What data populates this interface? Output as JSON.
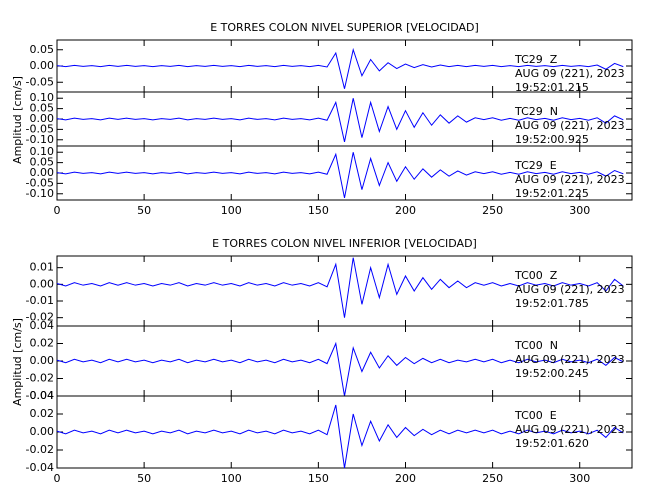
{
  "chart_data": [
    {
      "type": "line",
      "title": "E TORRES COLON NIVEL SUPERIOR [VELOCIDAD]",
      "y_label": "Amplitud [cm/s]",
      "color": "#0000ff",
      "xlim": [
        0,
        330
      ],
      "xticks": [
        0,
        50,
        100,
        150,
        200,
        250,
        300
      ],
      "x": [
        0,
        5,
        10,
        15,
        20,
        25,
        30,
        35,
        40,
        45,
        50,
        55,
        60,
        65,
        70,
        75,
        80,
        85,
        90,
        95,
        100,
        105,
        110,
        115,
        120,
        125,
        130,
        135,
        140,
        145,
        150,
        155,
        160,
        165,
        170,
        175,
        180,
        185,
        190,
        195,
        200,
        205,
        210,
        215,
        220,
        225,
        230,
        235,
        240,
        245,
        250,
        255,
        260,
        265,
        270,
        275,
        280,
        285,
        290,
        295,
        300,
        305,
        310,
        315,
        320,
        325
      ],
      "panels": [
        {
          "station": "TC29  Z",
          "date": "AUG 09 (221), 2023",
          "time": "19:52:01.215",
          "ylim": [
            -0.08,
            0.08
          ],
          "yticks": [
            {
              "value": 0.05,
              "label": "0.05"
            },
            {
              "value": 0,
              "label": "0.00"
            },
            {
              "value": -0.05,
              "label": "-0.05"
            }
          ],
          "values": [
            0.001,
            -0.002,
            0.002,
            -0.001,
            0.001,
            -0.002,
            0.002,
            -0.001,
            0.002,
            -0.001,
            0.001,
            -0.002,
            0.001,
            -0.001,
            0.002,
            -0.002,
            0.001,
            -0.001,
            0.002,
            -0.001,
            0.001,
            -0.002,
            0.002,
            -0.001,
            0.001,
            -0.002,
            0.002,
            -0.001,
            0.001,
            -0.002,
            0.002,
            -0.003,
            0.04,
            -0.07,
            0.05,
            -0.03,
            0.02,
            -0.015,
            0.01,
            -0.008,
            0.006,
            -0.005,
            0.004,
            -0.003,
            0.003,
            -0.002,
            0.002,
            -0.002,
            0.002,
            -0.001,
            0.002,
            -0.002,
            0.001,
            -0.002,
            0.002,
            -0.001,
            0.001,
            -0.002,
            0.002,
            -0.001,
            0.001,
            -0.002,
            0.003,
            -0.01,
            0.008,
            -0.002
          ]
        },
        {
          "station": "TC29  N",
          "date": "AUG 09 (221), 2023",
          "time": "19:52:00.925",
          "ylim": [
            -0.13,
            0.13
          ],
          "yticks": [
            {
              "value": 0.1,
              "label": "0.10"
            },
            {
              "value": 0.05,
              "label": "0.05"
            },
            {
              "value": 0,
              "label": "0.00"
            },
            {
              "value": -0.05,
              "label": "-0.05"
            },
            {
              "value": -0.1,
              "label": "-0.10"
            }
          ],
          "values": [
            0.002,
            -0.004,
            0.004,
            -0.002,
            0.002,
            -0.004,
            0.004,
            -0.002,
            0.004,
            -0.002,
            0.002,
            -0.004,
            0.002,
            -0.002,
            0.004,
            -0.004,
            0.002,
            -0.002,
            0.004,
            -0.002,
            0.002,
            -0.004,
            0.004,
            -0.002,
            0.002,
            -0.004,
            0.004,
            -0.002,
            0.002,
            -0.004,
            0.004,
            -0.006,
            0.08,
            -0.11,
            0.1,
            -0.09,
            0.08,
            -0.06,
            0.06,
            -0.05,
            0.04,
            -0.04,
            0.03,
            -0.03,
            0.02,
            -0.02,
            0.015,
            -0.015,
            0.006,
            -0.003,
            0.006,
            -0.006,
            0.003,
            -0.006,
            0.006,
            -0.003,
            0.003,
            -0.006,
            0.006,
            -0.003,
            0.003,
            -0.006,
            0.006,
            -0.02,
            0.015,
            -0.004
          ]
        },
        {
          "station": "TC29  E",
          "date": "AUG 09 (221), 2023",
          "time": "19:52:01.225",
          "ylim": [
            -0.13,
            0.13
          ],
          "yticks": [
            {
              "value": 0.1,
              "label": "0.10"
            },
            {
              "value": 0.05,
              "label": "0.05"
            },
            {
              "value": 0,
              "label": "0.00"
            },
            {
              "value": -0.05,
              "label": "-0.05"
            },
            {
              "value": -0.1,
              "label": "-0.10"
            }
          ],
          "values": [
            0.002,
            -0.004,
            0.004,
            -0.002,
            0.002,
            -0.004,
            0.004,
            -0.002,
            0.004,
            -0.002,
            0.002,
            -0.004,
            0.002,
            -0.002,
            0.004,
            -0.004,
            0.002,
            -0.002,
            0.004,
            -0.002,
            0.002,
            -0.004,
            0.004,
            -0.002,
            0.002,
            -0.004,
            0.004,
            -0.002,
            0.002,
            -0.004,
            0.004,
            -0.006,
            0.09,
            -0.12,
            0.1,
            -0.08,
            0.07,
            -0.06,
            0.05,
            -0.04,
            0.03,
            -0.03,
            0.02,
            -0.02,
            0.015,
            -0.015,
            0.01,
            -0.01,
            0.006,
            -0.003,
            0.006,
            -0.006,
            0.003,
            -0.006,
            0.006,
            -0.003,
            0.003,
            -0.006,
            0.006,
            -0.003,
            0.003,
            -0.006,
            0.006,
            -0.015,
            0.012,
            -0.004
          ]
        }
      ]
    },
    {
      "type": "line",
      "title": "E TORRES COLON NIVEL INFERIOR [VELOCIDAD]",
      "y_label": "Amplitud [cm/s]",
      "color": "#0000ff",
      "xlim": [
        0,
        330
      ],
      "xticks": [
        0,
        50,
        100,
        150,
        200,
        250,
        300
      ],
      "x": [
        0,
        5,
        10,
        15,
        20,
        25,
        30,
        35,
        40,
        45,
        50,
        55,
        60,
        65,
        70,
        75,
        80,
        85,
        90,
        95,
        100,
        105,
        110,
        115,
        120,
        125,
        130,
        135,
        140,
        145,
        150,
        155,
        160,
        165,
        170,
        175,
        180,
        185,
        190,
        195,
        200,
        205,
        210,
        215,
        220,
        225,
        230,
        235,
        240,
        245,
        250,
        255,
        260,
        265,
        270,
        275,
        280,
        285,
        290,
        295,
        300,
        305,
        310,
        315,
        320,
        325
      ],
      "panels": [
        {
          "station": "TC00  Z",
          "date": "AUG 09 (221), 2023",
          "time": "19:52:01.785",
          "ylim": [
            -0.025,
            0.017
          ],
          "yticks": [
            {
              "value": 0.01,
              "label": "0.01"
            },
            {
              "value": 0,
              "label": "0.00"
            },
            {
              "value": -0.01,
              "label": "-0.01"
            },
            {
              "value": -0.02,
              "label": "-0.02"
            }
          ],
          "values": [
            0.0005,
            -0.001,
            0.001,
            -0.0005,
            0.0005,
            -0.001,
            0.001,
            -0.0005,
            0.001,
            -0.0005,
            0.0005,
            -0.001,
            0.0005,
            -0.0005,
            0.001,
            -0.001,
            0.0005,
            -0.0005,
            0.001,
            -0.0005,
            0.0005,
            -0.001,
            0.001,
            -0.0005,
            0.0005,
            -0.001,
            0.001,
            -0.0005,
            0.0005,
            -0.001,
            0.001,
            -0.0015,
            0.012,
            -0.02,
            0.016,
            -0.012,
            0.01,
            -0.008,
            0.012,
            -0.006,
            0.005,
            -0.004,
            0.004,
            -0.003,
            0.003,
            -0.002,
            0.002,
            -0.002,
            0.001,
            -0.0005,
            0.001,
            -0.001,
            0.0005,
            -0.001,
            0.001,
            -0.0005,
            0.0005,
            -0.001,
            0.001,
            -0.0005,
            0.0005,
            -0.001,
            0.001,
            -0.004,
            0.003,
            -0.001
          ]
        },
        {
          "station": "TC00  N",
          "date": "AUG 09 (221), 2023",
          "time": "19:52:00.245",
          "ylim": [
            -0.04,
            0.04
          ],
          "yticks": [
            {
              "value": 0.04,
              "label": "0.04"
            },
            {
              "value": 0.02,
              "label": "0.02"
            },
            {
              "value": 0,
              "label": "0.00"
            },
            {
              "value": -0.02,
              "label": "-0.02"
            },
            {
              "value": -0.04,
              "label": "-0.04"
            }
          ],
          "values": [
            0.001,
            -0.002,
            0.002,
            -0.001,
            0.001,
            -0.002,
            0.002,
            -0.001,
            0.002,
            -0.001,
            0.001,
            -0.002,
            0.001,
            -0.001,
            0.002,
            -0.002,
            0.001,
            -0.001,
            0.002,
            -0.001,
            0.001,
            -0.002,
            0.002,
            -0.001,
            0.001,
            -0.002,
            0.002,
            -0.001,
            0.001,
            -0.002,
            0.002,
            -0.003,
            0.02,
            -0.04,
            0.015,
            -0.012,
            0.01,
            -0.008,
            0.006,
            -0.005,
            0.004,
            -0.003,
            0.003,
            -0.002,
            0.002,
            -0.002,
            0.001,
            -0.001,
            0.002,
            -0.001,
            0.002,
            -0.002,
            0.001,
            -0.002,
            0.002,
            -0.001,
            0.001,
            -0.002,
            0.002,
            -0.001,
            0.001,
            -0.002,
            0.002,
            -0.005,
            0.004,
            -0.001
          ]
        },
        {
          "station": "TC00  E",
          "date": "AUG 09 (221), 2023",
          "time": "19:52:01.620",
          "ylim": [
            -0.04,
            0.04
          ],
          "yticks": [
            {
              "value": 0.04,
              "label": "0.04"
            },
            {
              "value": 0.02,
              "label": "0.02"
            },
            {
              "value": 0,
              "label": "0.00"
            },
            {
              "value": -0.02,
              "label": "-0.02"
            },
            {
              "value": -0.04,
              "label": "-0.04"
            }
          ],
          "values": [
            0.001,
            -0.002,
            0.002,
            -0.001,
            0.001,
            -0.002,
            0.002,
            -0.001,
            0.002,
            -0.001,
            0.001,
            -0.002,
            0.001,
            -0.001,
            0.002,
            -0.002,
            0.001,
            -0.001,
            0.002,
            -0.001,
            0.001,
            -0.002,
            0.002,
            -0.001,
            0.001,
            -0.002,
            0.002,
            -0.001,
            0.001,
            -0.002,
            0.002,
            -0.003,
            0.03,
            -0.04,
            0.02,
            -0.015,
            0.012,
            -0.01,
            0.008,
            -0.006,
            0.005,
            -0.004,
            0.003,
            -0.003,
            0.002,
            -0.002,
            0.002,
            -0.001,
            0.002,
            -0.001,
            0.002,
            -0.002,
            0.001,
            -0.002,
            0.002,
            -0.001,
            0.001,
            -0.002,
            0.002,
            -0.001,
            0.001,
            -0.002,
            0.002,
            -0.006,
            0.005,
            -0.001
          ]
        }
      ]
    }
  ]
}
